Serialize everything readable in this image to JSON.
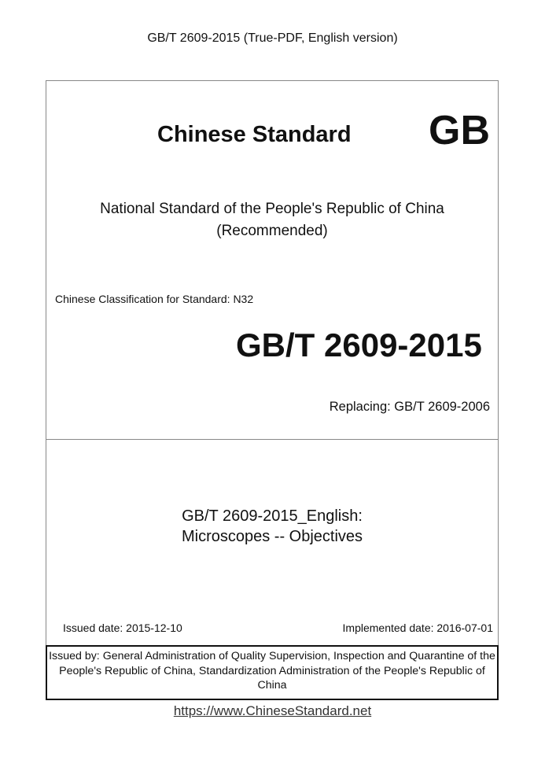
{
  "header": "GB/T 2609-2015 (True-PDF, English version)",
  "brand": {
    "title": "Chinese Standard",
    "mark": "GB"
  },
  "national": {
    "line1": "National Standard of the People's Republic of China",
    "line2": "(Recommended)"
  },
  "classification": "Chinese Classification for Standard: N32",
  "standard_number": "GB/T 2609-2015",
  "replacing": "Replacing: GB/T 2609-2006",
  "doc_title": {
    "line1": "GB/T 2609-2015_English:",
    "line2": "Microscopes -- Objectives"
  },
  "issued_date": "Issued date: 2015-12-10",
  "implemented_date": "Implemented date: 2016-07-01",
  "issued_by": "Issued by: General Administration of Quality Supervision, Inspection and Quarantine of the People's Republic of China, Standardization Administration of the People's Republic of China",
  "link": "https://www.ChineseStandard.net"
}
